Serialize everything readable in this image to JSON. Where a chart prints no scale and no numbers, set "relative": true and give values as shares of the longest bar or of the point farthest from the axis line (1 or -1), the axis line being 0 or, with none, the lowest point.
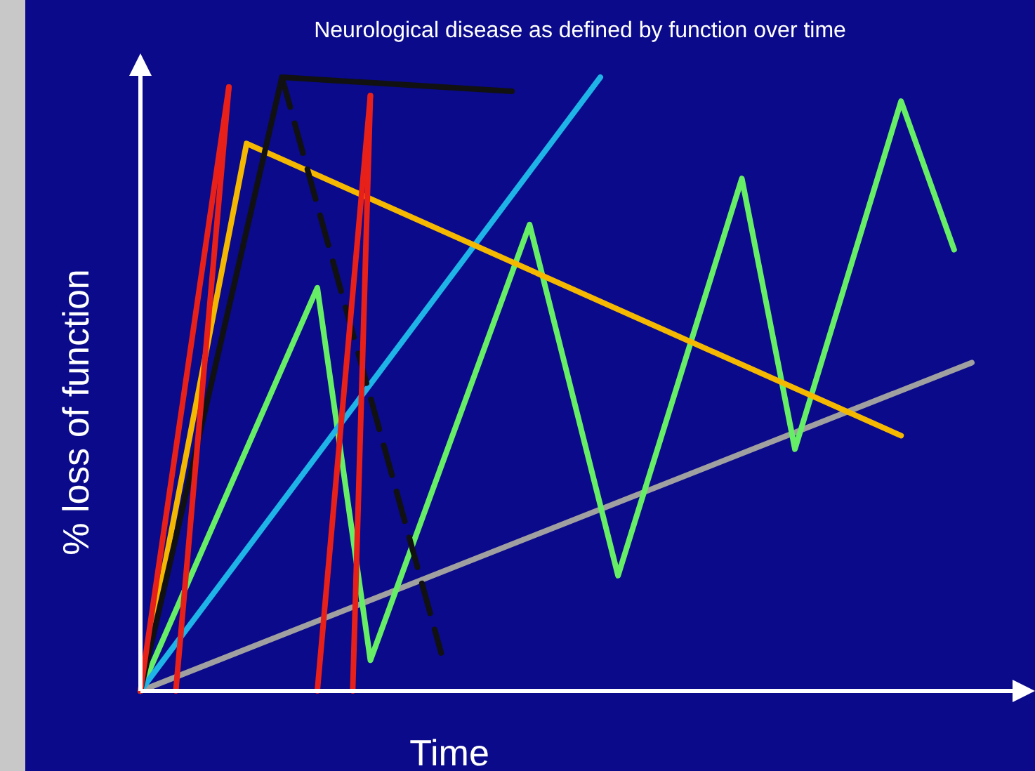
{
  "chart_data": {
    "type": "line",
    "title": "Neurological disease as defined by function over time",
    "xlabel": "Time",
    "ylabel": "% loss of function",
    "relative": true,
    "marker": "none",
    "categories": [
      null,
      null,
      null,
      null,
      null,
      null,
      null,
      null,
      null,
      null,
      null,
      null,
      null,
      null,
      null,
      null,
      null,
      null,
      null,
      null,
      null,
      null,
      null,
      null,
      null,
      null,
      null,
      null,
      null,
      null,
      null,
      null,
      null,
      null,
      null,
      null,
      null,
      null,
      null,
      null,
      null,
      null,
      null,
      null,
      null,
      null,
      null,
      null
    ],
    "series": [
      {
        "color": "#e8201a",
        "values": [
          0,
          null,
          null,
          null,
          null,
          0.984,
          null,
          null,
          null,
          null,
          null,
          null,
          null,
          null,
          null,
          null,
          null,
          null,
          null,
          null,
          null,
          null,
          null,
          null,
          null,
          null,
          null,
          null,
          null,
          null,
          null,
          null,
          null,
          null,
          null,
          null,
          null,
          null,
          null,
          null,
          null,
          null,
          null,
          null,
          null,
          null,
          null,
          null
        ]
      },
      {
        "color": "#e8201a",
        "values": [
          null,
          null,
          0,
          null,
          null,
          0.984,
          null,
          null,
          null,
          null,
          null,
          null,
          null,
          null,
          null,
          null,
          null,
          null,
          null,
          null,
          null,
          null,
          null,
          null,
          null,
          null,
          null,
          null,
          null,
          null,
          null,
          null,
          null,
          null,
          null,
          null,
          null,
          null,
          null,
          null,
          null,
          null,
          null,
          null,
          null,
          null,
          null,
          null
        ]
      },
      {
        "color": "#e8201a",
        "values": [
          null,
          null,
          null,
          null,
          null,
          null,
          null,
          null,
          null,
          null,
          0,
          null,
          null,
          0.97,
          null,
          null,
          null,
          null,
          null,
          null,
          null,
          null,
          null,
          null,
          null,
          null,
          null,
          null,
          null,
          null,
          null,
          null,
          null,
          null,
          null,
          null,
          null,
          null,
          null,
          null,
          null,
          null,
          null,
          null,
          null,
          null,
          null,
          null
        ]
      },
      {
        "color": "#e8201a",
        "values": [
          null,
          null,
          null,
          null,
          null,
          null,
          null,
          null,
          null,
          null,
          null,
          null,
          0,
          0.97,
          null,
          null,
          null,
          null,
          null,
          null,
          null,
          null,
          null,
          null,
          null,
          null,
          null,
          null,
          null,
          null,
          null,
          null,
          null,
          null,
          null,
          null,
          null,
          null,
          null,
          null,
          null,
          null,
          null,
          null,
          null,
          null,
          null,
          null
        ]
      },
      {
        "color": "#111111",
        "values": [
          0,
          null,
          null,
          null,
          null,
          null,
          null,
          null,
          1.0,
          null,
          null,
          null,
          null,
          null,
          null,
          null,
          null,
          null,
          null,
          null,
          null,
          0.977,
          null,
          null,
          null,
          null,
          null,
          null,
          null,
          null,
          null,
          null,
          null,
          null,
          null,
          null,
          null,
          null,
          null,
          null,
          null,
          null,
          null,
          null,
          null,
          null,
          null,
          null
        ]
      },
      {
        "color": "#111111",
        "line_style": "dashed",
        "values": [
          null,
          null,
          null,
          null,
          null,
          null,
          null,
          null,
          1.0,
          null,
          null,
          null,
          null,
          null,
          null,
          null,
          null,
          0.062,
          null,
          null,
          null,
          null,
          null,
          null,
          null,
          null,
          null,
          null,
          null,
          null,
          null,
          null,
          null,
          null,
          null,
          null,
          null,
          null,
          null,
          null,
          null,
          null,
          null,
          null,
          null,
          null,
          null,
          null
        ]
      },
      {
        "color": "#f5b800",
        "values": [
          0,
          null,
          null,
          null,
          null,
          null,
          0.892,
          null,
          null,
          null,
          null,
          null,
          null,
          null,
          null,
          null,
          null,
          null,
          null,
          null,
          null,
          null,
          null,
          null,
          null,
          null,
          null,
          null,
          null,
          null,
          null,
          null,
          null,
          null,
          null,
          null,
          null,
          null,
          null,
          null,
          null,
          null,
          null,
          0.416,
          null,
          null,
          null,
          null
        ]
      },
      {
        "color": "#1eb4e8",
        "values": [
          0,
          null,
          null,
          null,
          null,
          null,
          null,
          null,
          null,
          null,
          null,
          null,
          null,
          null,
          null,
          null,
          null,
          null,
          null,
          null,
          null,
          null,
          null,
          null,
          null,
          null,
          1.0,
          null,
          null,
          null,
          null,
          null,
          null,
          null,
          null,
          null,
          null,
          null,
          null,
          null,
          null,
          null,
          null,
          null,
          null,
          null,
          null,
          null
        ]
      },
      {
        "color": "#66ee66",
        "values": [
          0,
          null,
          null,
          null,
          null,
          null,
          null,
          null,
          null,
          null,
          0.657,
          null,
          null,
          0.05,
          null,
          null,
          null,
          null,
          null,
          null,
          null,
          null,
          0.76,
          null,
          null,
          null,
          null,
          0.188,
          null,
          null,
          null,
          null,
          null,
          null,
          0.835,
          null,
          null,
          0.394,
          null,
          null,
          null,
          null,
          null,
          0.961,
          null,
          null,
          0.719,
          null
        ]
      },
      {
        "color": "#a0a0a0",
        "values": [
          0,
          null,
          null,
          null,
          null,
          null,
          null,
          null,
          null,
          null,
          null,
          null,
          null,
          null,
          null,
          null,
          null,
          null,
          null,
          null,
          null,
          null,
          null,
          null,
          null,
          null,
          null,
          null,
          null,
          null,
          null,
          null,
          null,
          null,
          null,
          null,
          null,
          null,
          null,
          null,
          null,
          null,
          null,
          null,
          null,
          null,
          null,
          0.535
        ]
      }
    ]
  }
}
